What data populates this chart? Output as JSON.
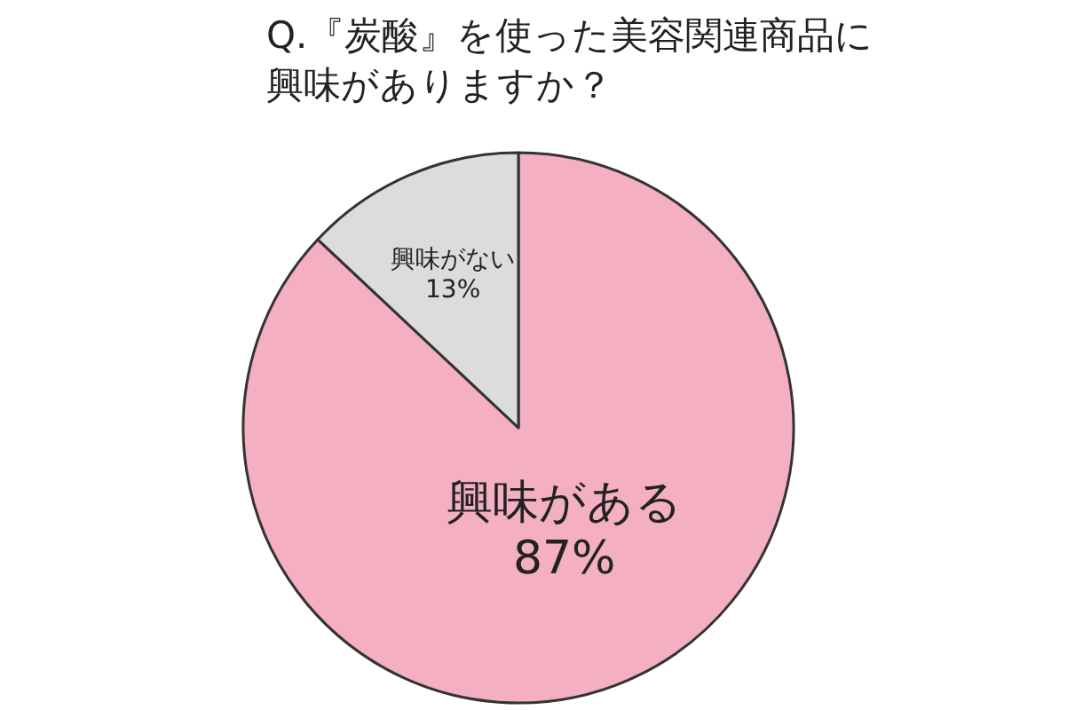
{
  "chart_data": {
    "type": "pie",
    "title": "Q.『炭酸』を使った美容関連商品に興味がありますか？",
    "categories": [
      "興味がある",
      "興味がない"
    ],
    "values": [
      87,
      13
    ],
    "value_labels": [
      "87%",
      "13%"
    ],
    "colors": [
      "#f4afc2",
      "#dcdcdc"
    ],
    "legend": false
  }
}
